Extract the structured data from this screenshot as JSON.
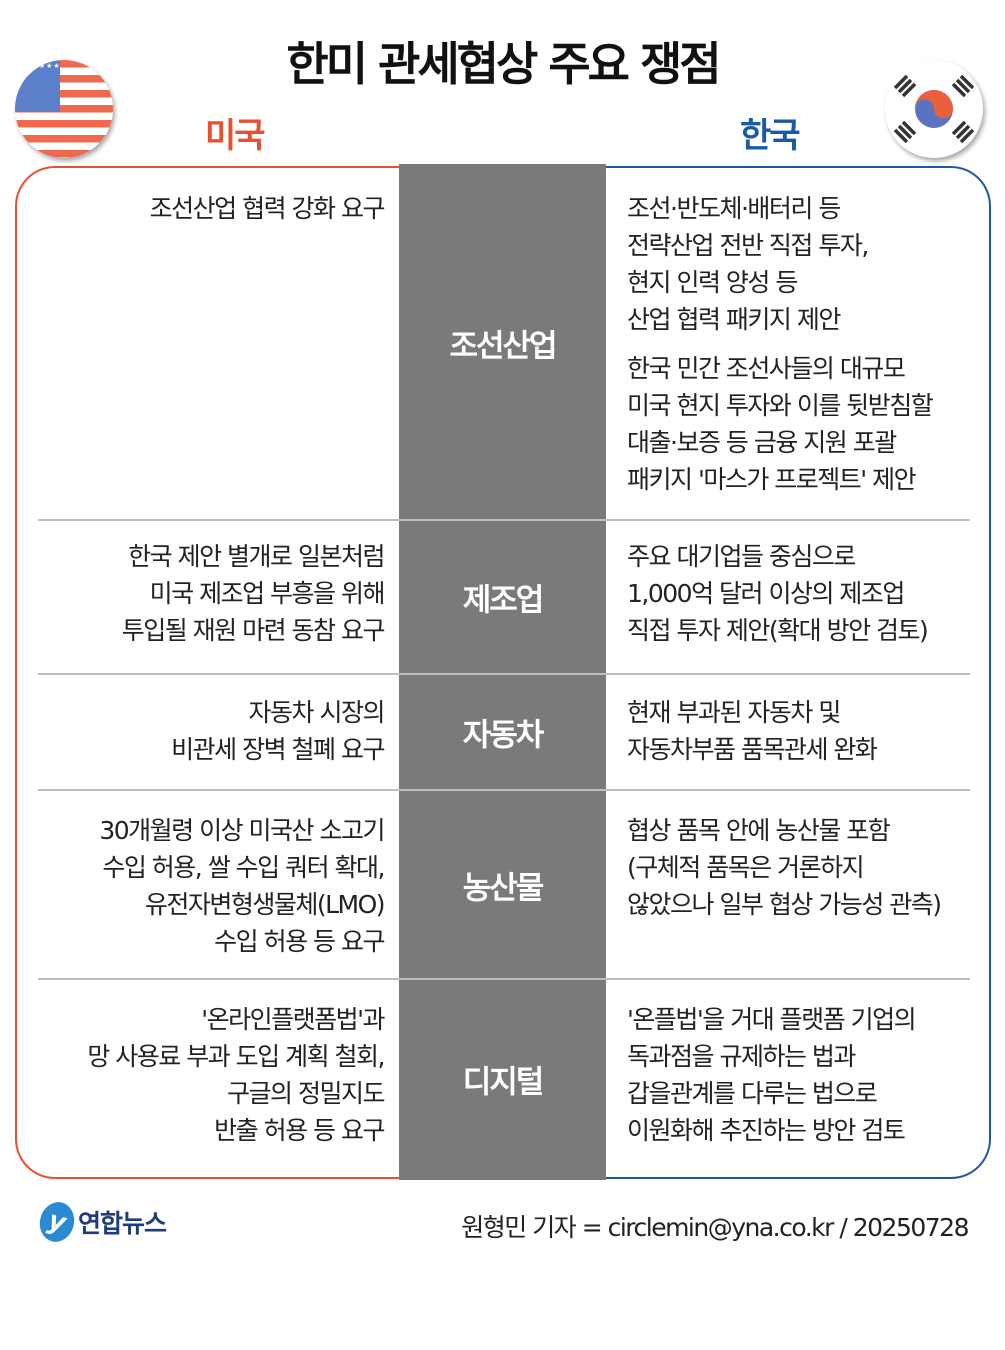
{
  "title": "한미 관세협상 주요 쟁점",
  "sides": {
    "us": "미국",
    "kr": "한국"
  },
  "colors": {
    "us": "#e8502f",
    "kr": "#1a59a8",
    "center": "#7a7a7a"
  },
  "rows": [
    {
      "category": "조선산업",
      "us": "조선산업 협력 강화 요구",
      "kr": "조선·반도체·배터리 등\n전략산업 전반 직접 투자,\n현지 인력 양성 등\n산업 협력 패키지 제안",
      "kr2": "한국 민간 조선사들의 대규모\n미국 현지 투자와 이를 뒷받침할\n대출·보증 등 금융 지원 포괄\n패키지 '마스가 프로젝트' 제안"
    },
    {
      "category": "제조업",
      "us": "한국 제안 별개로 일본처럼\n미국 제조업 부흥을 위해\n투입될 재원 마련 동참 요구",
      "kr": "주요 대기업들 중심으로\n1,000억 달러 이상의 제조업\n직접 투자 제안(확대 방안 검토)"
    },
    {
      "category": "자동차",
      "us": "자동차 시장의\n비관세 장벽 철폐 요구",
      "kr": "현재 부과된 자동차 및\n자동차부품 품목관세 완화"
    },
    {
      "category": "농산물",
      "us": "30개월령 이상 미국산 소고기\n수입 허용, 쌀 수입 쿼터 확대,\n유전자변형생물체(LMO)\n수입 허용 등 요구",
      "kr": "협상 품목 안에 농산물 포함\n(구체적 품목은 거론하지\n않았으나 일부 협상 가능성 관측)"
    },
    {
      "category": "디지털",
      "us": "'온라인플랫폼법'과\n망 사용료 부과 도입 계획 철회,\n구글의 정밀지도\n반출 허용 등 요구",
      "kr": "'온플법'을 거대 플랫폼 기업의\n독과점을 규제하는 법과\n갑을관계를 다루는 법으로\n이원화해 추진하는 방안 검토"
    }
  ],
  "footer": {
    "logo": "연합뉴스",
    "credit": "원형민 기자 = circlemin@yna.co.kr / 20250728"
  }
}
